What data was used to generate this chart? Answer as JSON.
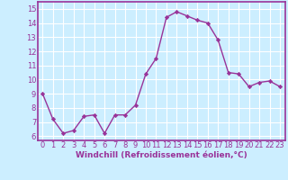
{
  "x": [
    0,
    1,
    2,
    3,
    4,
    5,
    6,
    7,
    8,
    9,
    10,
    11,
    12,
    13,
    14,
    15,
    16,
    17,
    18,
    19,
    20,
    21,
    22,
    23
  ],
  "y": [
    9.0,
    7.2,
    6.2,
    6.4,
    7.4,
    7.5,
    6.2,
    7.5,
    7.5,
    8.2,
    10.4,
    11.5,
    14.4,
    14.8,
    14.5,
    14.2,
    14.0,
    12.8,
    10.5,
    10.4,
    9.5,
    9.8,
    9.9,
    9.5
  ],
  "line_color": "#993399",
  "marker": "D",
  "marker_size": 2.2,
  "linewidth": 1.0,
  "xlabel": "Windchill (Refroidissement éolien,°C)",
  "xlabel_fontsize": 6.5,
  "background_color": "#cceeff",
  "grid_color": "#ffffff",
  "axis_label_color": "#993399",
  "tick_label_color": "#993399",
  "ylim": [
    5.7,
    15.5
  ],
  "xlim": [
    -0.5,
    23.5
  ],
  "yticks": [
    6,
    7,
    8,
    9,
    10,
    11,
    12,
    13,
    14,
    15
  ],
  "xticks": [
    0,
    1,
    2,
    3,
    4,
    5,
    6,
    7,
    8,
    9,
    10,
    11,
    12,
    13,
    14,
    15,
    16,
    17,
    18,
    19,
    20,
    21,
    22,
    23
  ],
  "tick_fontsize": 6.0,
  "border_color": "#993399",
  "spine_linewidth": 1.2
}
